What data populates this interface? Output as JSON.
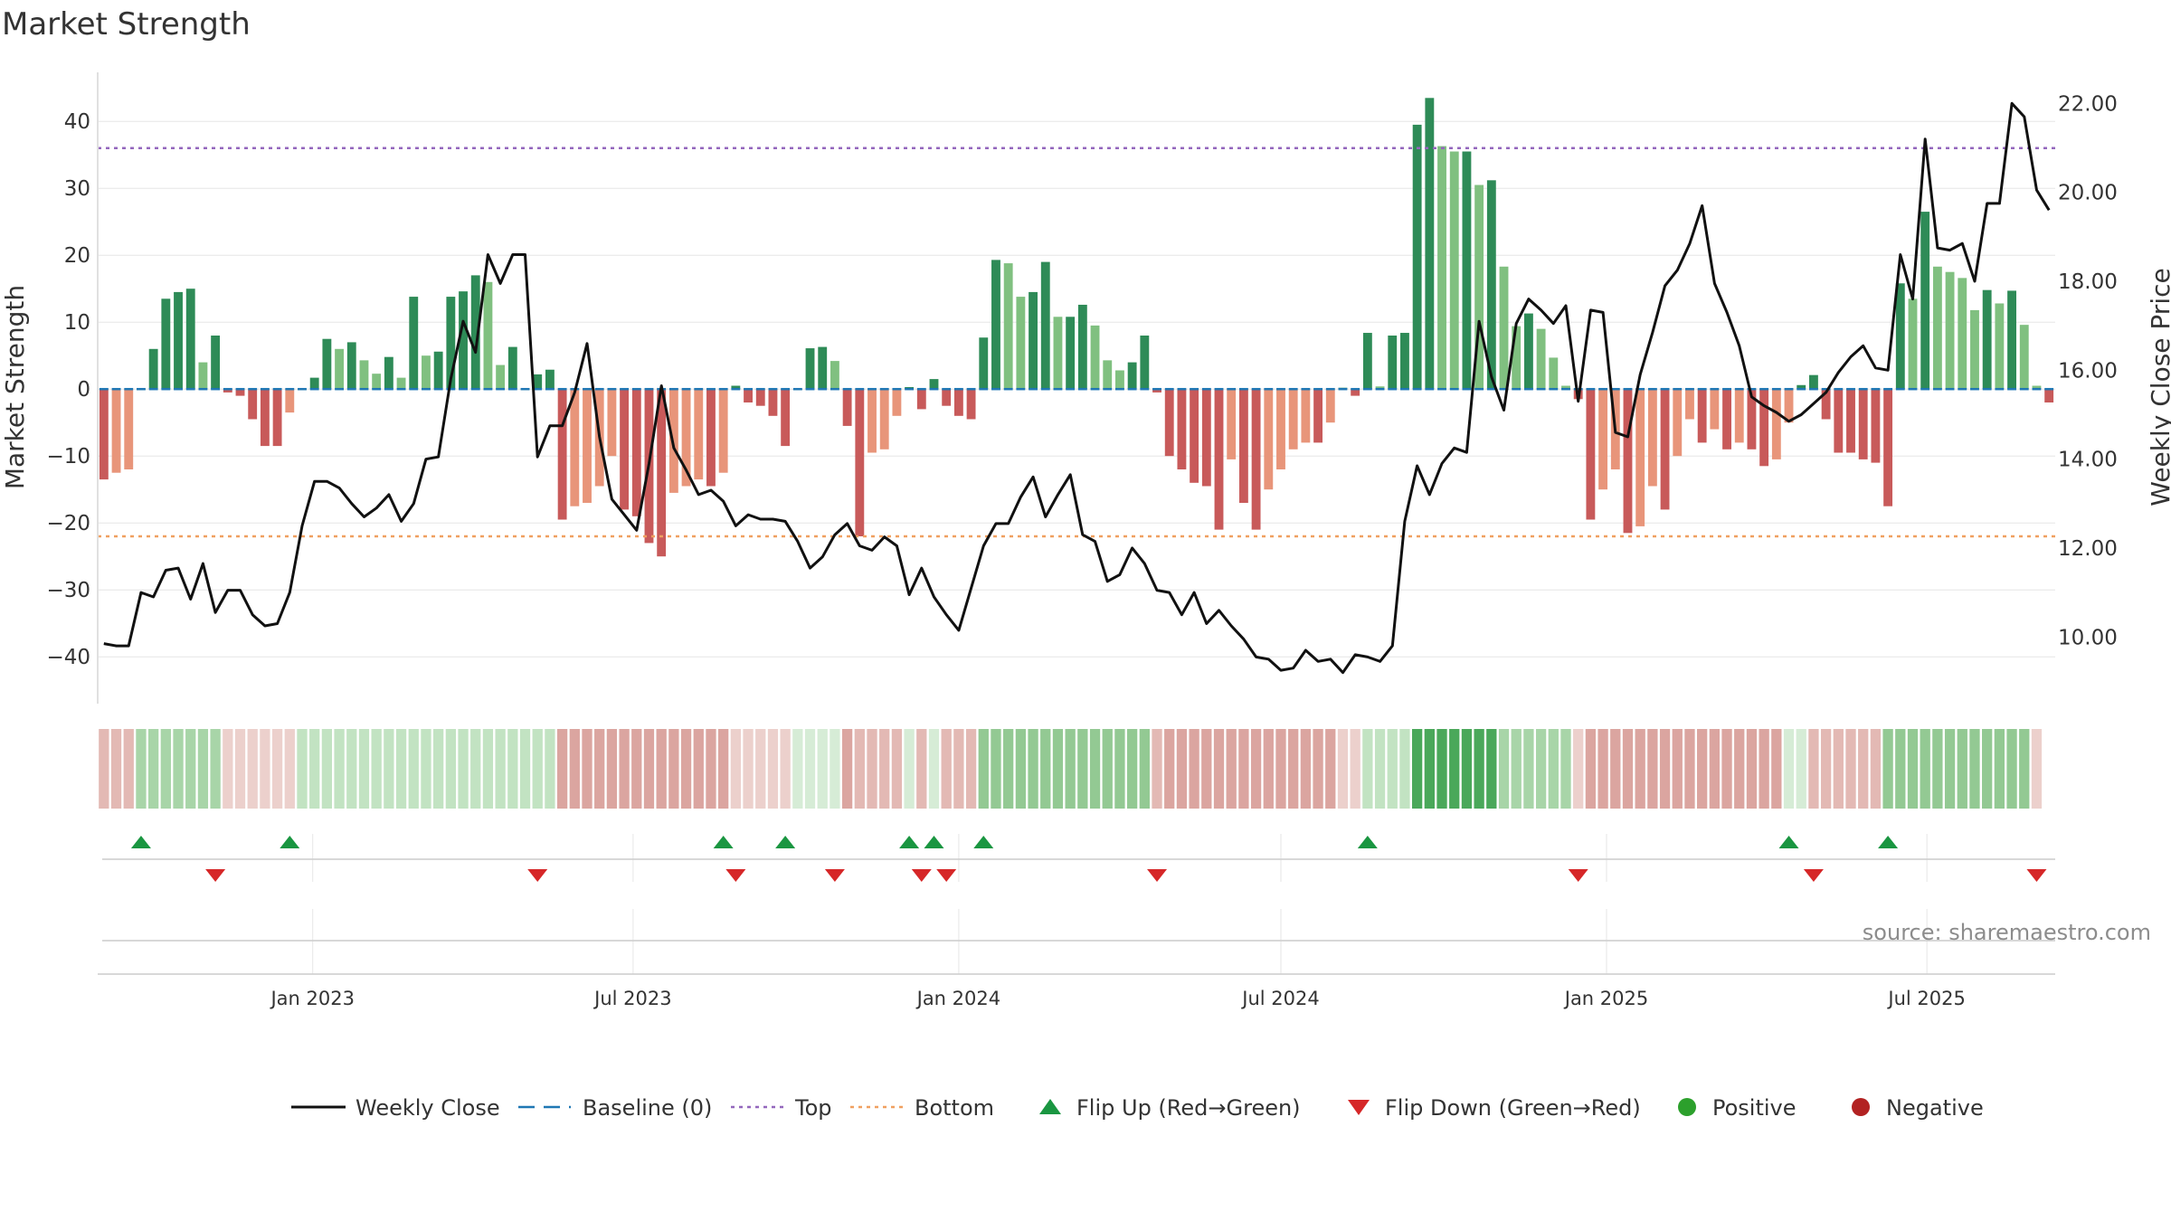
{
  "title": "Market Strength",
  "source": "source: sharemaestro.com",
  "colors": {
    "pos_dark": "#2e8b57",
    "pos_light": "#80c080",
    "neg_dark": "#c85a5a",
    "neg_light": "#e8957a",
    "price": "#111111",
    "baseline": "#1f77b4",
    "top": "#9467bd",
    "bottom": "#f0a060",
    "flip_up": "#1a9641",
    "flip_down": "#d62728",
    "positive": "#2ca02c",
    "negative": "#b22222"
  },
  "chart_data": {
    "type": "bar",
    "title": "Market Strength",
    "ylabel": "Market Strength",
    "y2label": "Weekly Close Price",
    "ylim": [
      -47,
      48
    ],
    "y2lim": [
      8.5,
      22.8
    ],
    "yticks": [
      "40",
      "30",
      "20",
      "10",
      "0",
      "−10",
      "−20",
      "−30",
      "−40"
    ],
    "y2ticks": [
      "22.00",
      "20.00",
      "18.00",
      "16.00",
      "14.00",
      "12.00",
      "10.00"
    ],
    "x_ticks": [
      "Jan 2023",
      "Jul 2023",
      "Jan 2024",
      "Jul 2024",
      "Jan 2025",
      "Jul 2025"
    ],
    "top_line": 36,
    "bottom_line": -22,
    "start_date": "2022-09-05",
    "strength": [
      -13.5,
      -12.5,
      -12,
      0,
      6,
      13.5,
      14.5,
      15,
      4,
      8,
      -0.5,
      -1,
      -4.5,
      -8.5,
      -8.5,
      -3.5,
      0,
      1.7,
      7.5,
      6,
      7,
      4.3,
      2.3,
      4.8,
      1.7,
      13.8,
      5,
      5.6,
      13.8,
      14.6,
      17,
      16,
      3.6,
      6.3,
      0,
      2.2,
      2.9,
      -19.5,
      -17.5,
      -17,
      -14.5,
      -10,
      -18,
      -19,
      -23,
      -25,
      -15.5,
      -14.5,
      -13.5,
      -14.5,
      -12.5,
      0.5,
      -2,
      -2.5,
      -4,
      -8.5,
      0,
      6.1,
      6.3,
      4.2,
      -5.5,
      -22,
      -9.5,
      -9,
      -4,
      0.3,
      -3,
      1.5,
      -2.5,
      -4,
      -4.5,
      7.7,
      19.3,
      18.8,
      13.8,
      14.5,
      19,
      10.8,
      10.8,
      12.6,
      9.5,
      4.3,
      2.8,
      4,
      8,
      -0.5,
      -10,
      -12,
      -14,
      -14.5,
      -21,
      -10.5,
      -17,
      -21,
      -15,
      -12,
      -9,
      -8,
      -8,
      -5,
      0.2,
      -1,
      8.4,
      0.4,
      8,
      8.4,
      39.5,
      43.5,
      36.3,
      35.5,
      35.5,
      30.5,
      31.2,
      18.3,
      9.4,
      11.3,
      9,
      4.7,
      0.5,
      -1.5,
      -19.5,
      -15,
      -12,
      -21.5,
      -20.5,
      -14.5,
      -18,
      -10,
      -4.5,
      -8,
      -6,
      -9,
      -8,
      -9,
      -11.5,
      -10.5,
      -5,
      0.6,
      2.1,
      -4.5,
      -9.5,
      -9.5,
      -10.5,
      -11,
      -17.5,
      15.8,
      13.5,
      26.5,
      18.3,
      17.5,
      16.6,
      11.8,
      14.8,
      12.8,
      14.7,
      9.6,
      0.5,
      -2
    ],
    "price": [
      9.85,
      9.8,
      9.8,
      11,
      10.9,
      11.5,
      11.55,
      10.85,
      11.65,
      10.55,
      11.05,
      11.05,
      10.5,
      10.25,
      10.3,
      11,
      12.5,
      13.5,
      13.5,
      13.35,
      13,
      12.7,
      12.9,
      13.2,
      12.6,
      13,
      14,
      14.05,
      15.8,
      17.1,
      16.4,
      18.6,
      17.95,
      18.6,
      18.6,
      14.05,
      14.75,
      14.75,
      15.5,
      16.6,
      14.5,
      13.1,
      12.75,
      12.4,
      13.9,
      15.65,
      14.25,
      13.75,
      13.2,
      13.3,
      13.05,
      12.5,
      12.75,
      12.65,
      12.65,
      12.6,
      12.15,
      11.55,
      11.8,
      12.3,
      12.55,
      12.05,
      11.95,
      12.25,
      12.05,
      10.95,
      11.55,
      10.9,
      10.5,
      10.15,
      11.1,
      12.05,
      12.55,
      12.55,
      13.15,
      13.6,
      12.7,
      13.2,
      13.65,
      12.3,
      12.15,
      11.25,
      11.4,
      12,
      11.65,
      11.05,
      11,
      10.5,
      11,
      10.3,
      10.6,
      10.25,
      9.95,
      9.55,
      9.5,
      9.25,
      9.3,
      9.7,
      9.45,
      9.5,
      9.2,
      9.6,
      9.55,
      9.45,
      9.8,
      12.6,
      13.85,
      13.2,
      13.9,
      14.25,
      14.15,
      17.1,
      15.85,
      15.1,
      17.05,
      17.6,
      17.35,
      17.05,
      17.45,
      15.3,
      17.35,
      17.3,
      14.6,
      14.5,
      15.9,
      16.85,
      17.9,
      18.25,
      18.85,
      19.7,
      17.95,
      17.3,
      16.55,
      15.4,
      15.2,
      15.05,
      14.85,
      15,
      15.25,
      15.5,
      15.95,
      16.3,
      16.55,
      16.05,
      16.0,
      18.6,
      17.6,
      21.2,
      18.75,
      18.7,
      18.85,
      18,
      19.75,
      19.75,
      22,
      21.7,
      20.05,
      19.6
    ],
    "band": [
      -2,
      -2,
      -2,
      3,
      3,
      3,
      3,
      3,
      3,
      3,
      -1,
      -1,
      -1,
      -1,
      -1,
      -1,
      2,
      2,
      2,
      2,
      2,
      2,
      2,
      2,
      2,
      2,
      2,
      2,
      2,
      2,
      2,
      2,
      2,
      2,
      2,
      2,
      2,
      -3,
      -3,
      -3,
      -3,
      -3,
      -3,
      -3,
      -3,
      -3,
      -3,
      -3,
      -3,
      -3,
      -3,
      -1,
      -1,
      -1,
      -1,
      -1,
      1,
      1,
      1,
      1,
      -3,
      -2,
      -2,
      -2,
      -2,
      1,
      -2,
      1,
      -2,
      -2,
      -2,
      4,
      4,
      4,
      4,
      4,
      4,
      4,
      4,
      4,
      4,
      4,
      4,
      4,
      4,
      -2,
      -3,
      -3,
      -3,
      -3,
      -3,
      -3,
      -3,
      -3,
      -3,
      -3,
      -3,
      -3,
      -3,
      -3,
      -1,
      -1,
      2,
      2,
      2,
      2,
      7,
      7,
      7,
      7,
      7,
      7,
      7,
      3,
      3,
      3,
      3,
      3,
      3,
      -1,
      -3,
      -3,
      -3,
      -3,
      -3,
      -3,
      -3,
      -3,
      -3,
      -3,
      -3,
      -3,
      -3,
      -3,
      -3,
      -3,
      1,
      1,
      -2,
      -2,
      -2,
      -2,
      -2,
      -2,
      4,
      4,
      4,
      4,
      4,
      4,
      4,
      4,
      4,
      4,
      4,
      4,
      -1
    ],
    "flip_up": [
      3,
      15,
      50,
      55,
      65,
      67,
      71,
      102,
      136,
      144
    ],
    "flip_down": [
      9,
      35,
      51,
      59,
      66,
      68,
      85,
      119,
      138,
      156
    ]
  },
  "legend": [
    {
      "label": "Weekly Close",
      "kind": "line"
    },
    {
      "label": "Baseline (0)",
      "kind": "dash"
    },
    {
      "label": "Top",
      "kind": "dot-purple"
    },
    {
      "label": "Bottom",
      "kind": "dot-orange"
    },
    {
      "label": "Flip Up (Red→Green)",
      "kind": "tri-up"
    },
    {
      "label": "Flip Down (Green→Red)",
      "kind": "tri-down"
    },
    {
      "label": "Positive",
      "kind": "circle-green"
    },
    {
      "label": "Negative",
      "kind": "circle-red"
    }
  ]
}
